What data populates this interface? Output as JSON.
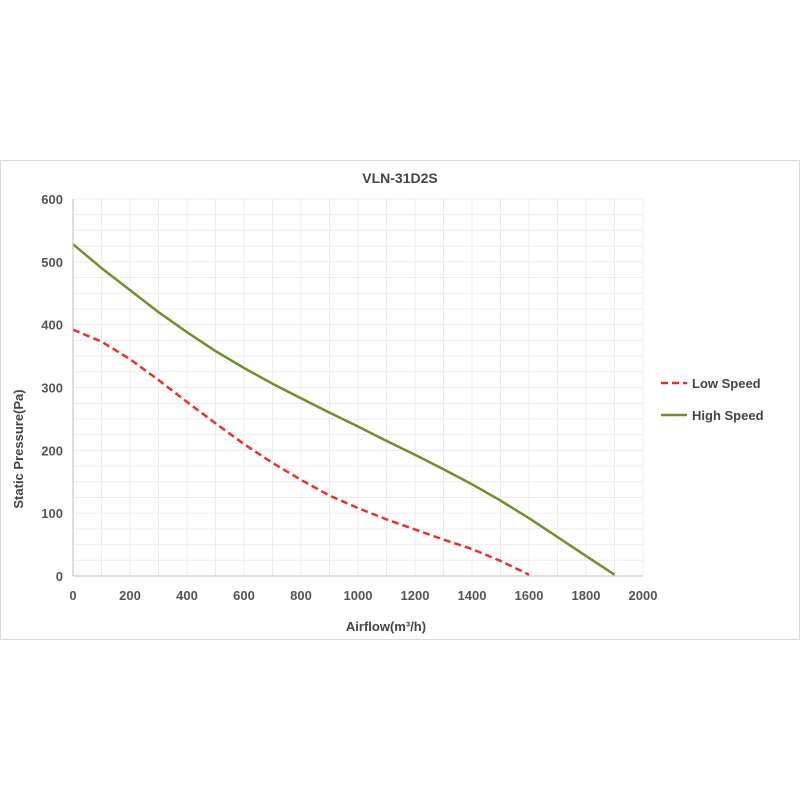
{
  "chart_data": {
    "type": "line",
    "title": "VLN-31D2S",
    "xlabel": "Airflow(m³/h)",
    "ylabel": "Static Pressure(Pa)",
    "xlim": [
      0,
      2000
    ],
    "ylim": [
      0,
      600
    ],
    "xticks": [
      0,
      200,
      400,
      600,
      800,
      1000,
      1200,
      1400,
      1600,
      1800,
      2000
    ],
    "yticks": [
      0,
      100,
      200,
      300,
      400,
      500,
      600
    ],
    "grid": true,
    "legend_position": "right",
    "series": [
      {
        "name": "Low Speed",
        "color": "#e8302f",
        "dash": "dashed",
        "x": [
          0,
          100,
          200,
          300,
          400,
          500,
          600,
          700,
          800,
          900,
          1000,
          1100,
          1200,
          1300,
          1400,
          1500,
          1600
        ],
        "y": [
          392,
          373,
          345,
          312,
          277,
          243,
          210,
          180,
          153,
          128,
          108,
          90,
          74,
          58,
          43,
          24,
          2
        ]
      },
      {
        "name": "High Speed",
        "color": "#6f8f2c",
        "dash": "solid",
        "x": [
          0,
          100,
          200,
          300,
          400,
          500,
          600,
          700,
          800,
          900,
          1000,
          1100,
          1200,
          1300,
          1400,
          1500,
          1600,
          1700,
          1800,
          1900
        ],
        "y": [
          528,
          490,
          455,
          420,
          388,
          358,
          331,
          306,
          283,
          260,
          238,
          215,
          193,
          170,
          146,
          120,
          92,
          62,
          32,
          2
        ]
      }
    ]
  }
}
